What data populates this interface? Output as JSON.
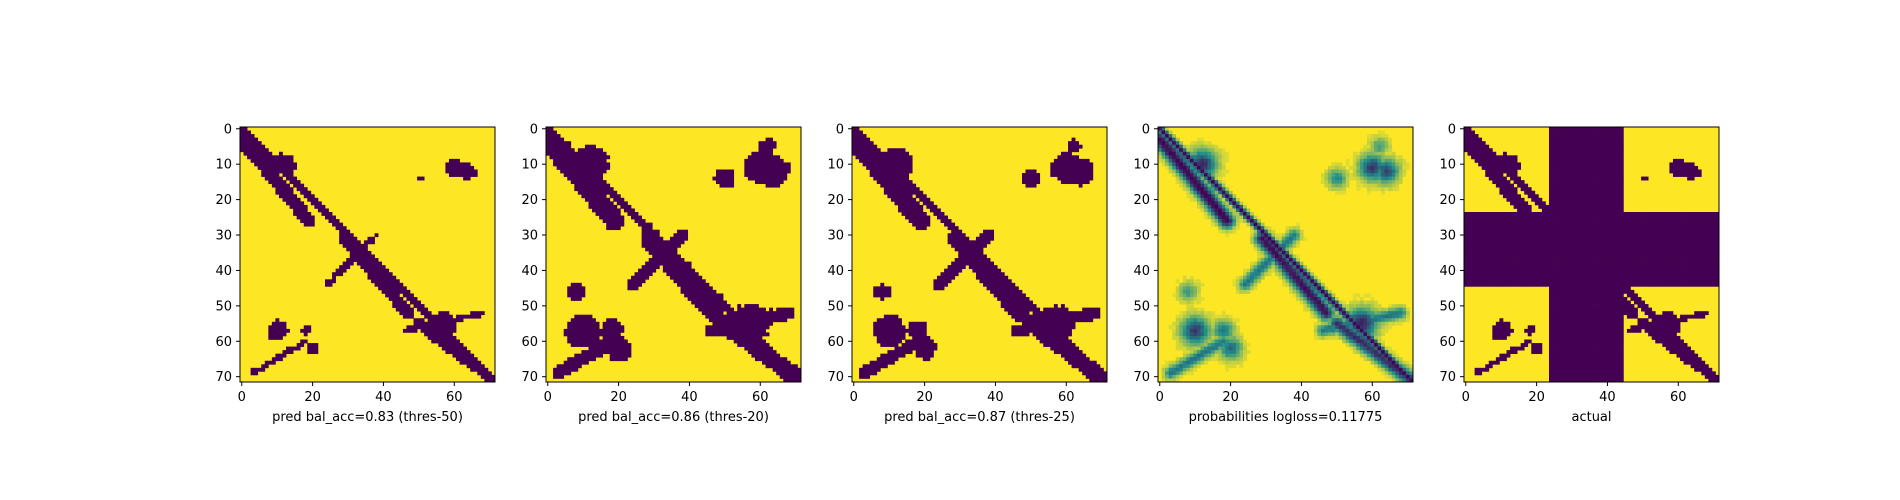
{
  "chart_data": [
    {
      "type": "heatmap",
      "xlabel": "pred bal_acc=0.83 (thres-50)",
      "kind": "binary",
      "threshold": 0.5,
      "size": 72,
      "xticks": [
        0,
        20,
        40,
        60
      ],
      "yticks": [
        0,
        10,
        20,
        30,
        40,
        50,
        60,
        70
      ],
      "xlim": [
        0,
        71
      ],
      "ylim": [
        71,
        0
      ],
      "grid": false,
      "colors": {
        "low": "#440154",
        "high": "#fde725"
      }
    },
    {
      "type": "heatmap",
      "xlabel": "pred bal_acc=0.86 (thres-20)",
      "kind": "binary",
      "threshold": 0.2,
      "size": 72,
      "xticks": [
        0,
        20,
        40,
        60
      ],
      "yticks": [
        0,
        10,
        20,
        30,
        40,
        50,
        60,
        70
      ],
      "xlim": [
        0,
        71
      ],
      "ylim": [
        71,
        0
      ],
      "grid": false,
      "colors": {
        "low": "#440154",
        "high": "#fde725"
      }
    },
    {
      "type": "heatmap",
      "xlabel": "pred bal_acc=0.87 (thres-25)",
      "kind": "binary",
      "threshold": 0.25,
      "size": 72,
      "xticks": [
        0,
        20,
        40,
        60
      ],
      "yticks": [
        0,
        10,
        20,
        30,
        40,
        50,
        60,
        70
      ],
      "xlim": [
        0,
        71
      ],
      "ylim": [
        71,
        0
      ],
      "grid": false,
      "colors": {
        "low": "#440154",
        "high": "#fde725"
      }
    },
    {
      "type": "heatmap",
      "xlabel": "probabilities logloss=0.11775",
      "kind": "continuous",
      "size": 72,
      "xticks": [
        0,
        20,
        40,
        60
      ],
      "yticks": [
        0,
        10,
        20,
        30,
        40,
        50,
        60,
        70
      ],
      "xlim": [
        0,
        71
      ],
      "ylim": [
        71,
        0
      ],
      "grid": false,
      "colors": {
        "low": "#440154",
        "mid": "#21918c",
        "high": "#fde725"
      }
    },
    {
      "type": "heatmap",
      "xlabel": "actual",
      "kind": "actual",
      "threshold": 0.5,
      "masked_range": [
        24,
        44
      ],
      "size": 72,
      "xticks": [
        0,
        20,
        40,
        60
      ],
      "yticks": [
        0,
        10,
        20,
        30,
        40,
        50,
        60,
        70
      ],
      "xlim": [
        0,
        71
      ],
      "ylim": [
        71,
        0
      ],
      "grid": false,
      "colors": {
        "low": "#440154",
        "high": "#fde725"
      }
    }
  ]
}
